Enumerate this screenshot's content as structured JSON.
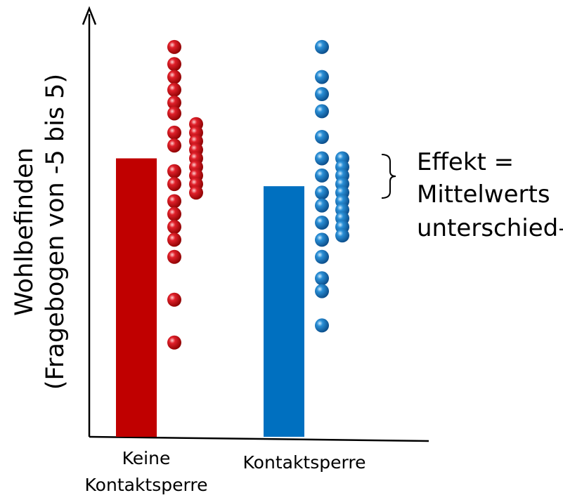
{
  "chart_data": {
    "type": "bar",
    "title": "",
    "xlabel": "",
    "ylabel": [
      "Wohlbefinden",
      "(Fragebogen von -5 bis 5)"
    ],
    "categories": [
      [
        "Keine",
        "Kontaktsperre"
      ],
      [
        "Kontaktsperre"
      ]
    ],
    "colors": [
      "#c00000",
      "#0070c0"
    ],
    "values": [
      3.0,
      2.35
    ],
    "points": [
      [
        5.6,
        5.2,
        4.9,
        4.6,
        4.3,
        4.05,
        3.6,
        3.3,
        2.7,
        2.4,
        2.0,
        1.7,
        1.4,
        1.1,
        0.7,
        -0.3,
        -1.3,
        3.8,
        3.6,
        3.4,
        3.2,
        3.0,
        2.8,
        2.6,
        2.4,
        2.2
      ],
      [
        5.6,
        4.9,
        4.5,
        4.1,
        3.5,
        3.0,
        2.6,
        2.2,
        1.9,
        1.5,
        1.1,
        0.7,
        0.2,
        -0.1,
        -0.9,
        3.0,
        2.8,
        2.6,
        2.4,
        2.2,
        2.0,
        1.8,
        1.6,
        1.4,
        1.2
      ]
    ],
    "ylim": [
      -3.5,
      6.5
    ],
    "annotation": [
      "Effekt =",
      "Mittelwerts",
      "unterschied–"
    ],
    "grid": false,
    "legend": "none"
  }
}
